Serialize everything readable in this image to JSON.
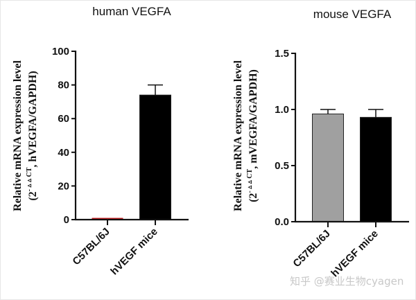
{
  "chart_data": [
    {
      "type": "bar",
      "title": "human VEGFA",
      "ylabel_line1": "Relative mRNA expression level",
      "ylabel_line2_prefix": "(2",
      "ylabel_line2_sup": "- ▵ ▵ CT",
      "ylabel_line2_suffix": ", hVEGFA/GAPDH)",
      "xlabel": "",
      "categories": [
        "C57BL/6J",
        "hVEGF mice"
      ],
      "values": [
        1,
        74
      ],
      "error_upper": [
        1,
        80
      ],
      "bar_colors": [
        "#c0191c",
        "#000000"
      ],
      "ylim": [
        0,
        100
      ],
      "yticks": [
        0,
        20,
        40,
        60,
        80,
        100
      ],
      "ytick_labels": [
        "0",
        "20",
        "40",
        "60",
        "80",
        "100"
      ],
      "grid": false,
      "legend": "none"
    },
    {
      "type": "bar",
      "title": "mouse VEGFA",
      "ylabel_line1": "Relative mRNA expression level",
      "ylabel_line2_prefix": "(2",
      "ylabel_line2_sup": "- ▵ ▵ CT",
      "ylabel_line2_suffix": ", mVEGFA/GAPDH)",
      "xlabel": "",
      "categories": [
        "C57BL/6J",
        "hVEGF mice"
      ],
      "values": [
        0.96,
        0.93
      ],
      "error_upper": [
        1.0,
        1.0
      ],
      "bar_colors": [
        "#a0a0a0",
        "#000000"
      ],
      "ylim": [
        0,
        1.5
      ],
      "yticks": [
        0,
        0.5,
        1.0,
        1.5
      ],
      "ytick_labels": [
        "0.0",
        "0.5",
        "1.0",
        "1.5"
      ],
      "grid": false,
      "legend": "none"
    }
  ],
  "watermark": "知乎 @赛业生物cyagen"
}
